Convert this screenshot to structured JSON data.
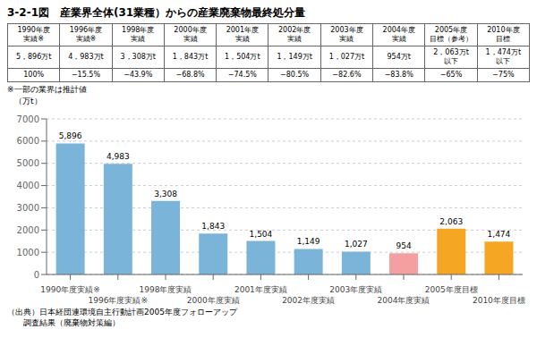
{
  "chart_data": {
    "type": "bar",
    "title": "3-2-1図　産業界全体(31業種）からの産業廃棄物最終処分量",
    "y_label": "（万t）",
    "categories": [
      "1990年度実績※",
      "1996年度実績※",
      "1998年度実績",
      "2000年度実績",
      "2001年度実績",
      "2002年度実績",
      "2003年度実績",
      "2004年度実績",
      "2005年度目標",
      "2010年度目標"
    ],
    "values": [
      5896,
      4983,
      3308,
      1843,
      1504,
      1149,
      1027,
      954,
      2063,
      1474
    ],
    "value_labels": [
      "5,896",
      "4,983",
      "3,308",
      "1,843",
      "1,504",
      "1,149",
      "1,027",
      "954",
      "2,063",
      "1,474"
    ],
    "colors": [
      "#7ab4d8",
      "#7ab4d8",
      "#7ab4d8",
      "#7ab4d8",
      "#7ab4d8",
      "#7ab4d8",
      "#7ab4d8",
      "#f4a0a0",
      "#f5a623",
      "#f5a623"
    ],
    "ylim": [
      0,
      7000
    ],
    "yticks": [
      0,
      1000,
      2000,
      3000,
      4000,
      5000,
      6000,
      7000
    ],
    "grid": true,
    "data_labels": true,
    "table": {
      "headers": [
        [
          "1990年度",
          "実績※"
        ],
        [
          "1996年度",
          "実績※"
        ],
        [
          "1998年度",
          "実績"
        ],
        [
          "2000年度",
          "実績"
        ],
        [
          "2001年度",
          "実績"
        ],
        [
          "2002年度",
          "実績"
        ],
        [
          "2003年度",
          "実績"
        ],
        [
          "2004年度",
          "実績"
        ],
        [
          "2005年度",
          "目標（参考）"
        ],
        [
          "2010年度",
          "目標"
        ]
      ],
      "values": [
        [
          "5，896万t"
        ],
        [
          "4，983万t"
        ],
        [
          "3，308万t"
        ],
        [
          "1，843万t"
        ],
        [
          "1，504万t"
        ],
        [
          "1，149万t"
        ],
        [
          "1，027万t"
        ],
        [
          "954万t"
        ],
        [
          "2，063万t",
          "以下"
        ],
        [
          "1，474万t",
          "以下"
        ]
      ],
      "percents": [
        "100%",
        "−15.5%",
        "−43.9%",
        "−68.8%",
        "−74.5%",
        "−80.5%",
        "−82.6%",
        "−83.8%",
        "−65%",
        "−75%"
      ]
    },
    "annotations": [
      "※一部の業界は推計値",
      "（出典）日本経団連環境自主行動計画2005年度フォローアップ",
      "　　調査結果（廃棄物対策編）"
    ]
  }
}
